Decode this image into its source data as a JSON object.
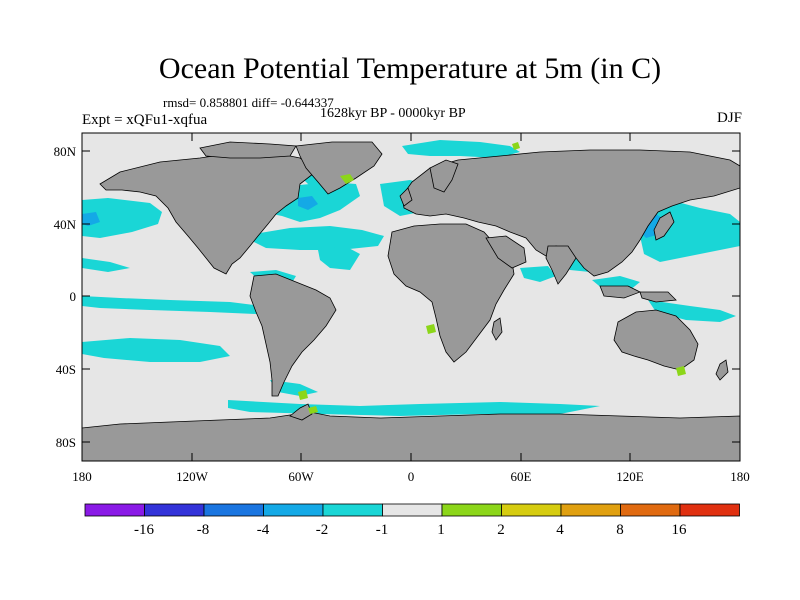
{
  "title": "Ocean Potential Temperature at 5m (in C)",
  "stats": {
    "rmsd_label": "rmsd=",
    "rmsd": "0.858801",
    "diff_label": "diff=",
    "diff": "-0.644337"
  },
  "period": "1628kyr BP - 0000kyr BP",
  "experiment": "Expt = xQFu1-xqfua",
  "season": "DJF",
  "axes": {
    "y_ticks": [
      "80N",
      "40N",
      "0",
      "40S",
      "80S"
    ],
    "x_ticks": [
      "180",
      "120W",
      "60W",
      "0",
      "60E",
      "120E",
      "180"
    ]
  },
  "colorbar": {
    "labels": [
      "-16",
      "-8",
      "-4",
      "-2",
      "-1",
      "1",
      "2",
      "4",
      "8",
      "16"
    ],
    "colors": [
      "#8a1ae6",
      "#3333d9",
      "#1a75e0",
      "#14a9e6",
      "#1ad6d6",
      "#e6e6e6",
      "#8cd619",
      "#d6cc10",
      "#e0a010",
      "#e06a10",
      "#e03010"
    ]
  },
  "map_colors": {
    "land": "#999999",
    "ocean": "#e6e6e6",
    "cooling": "#1ad6d6",
    "stronger_cooling": "#14a9e6",
    "warming": "#8cd619"
  }
}
